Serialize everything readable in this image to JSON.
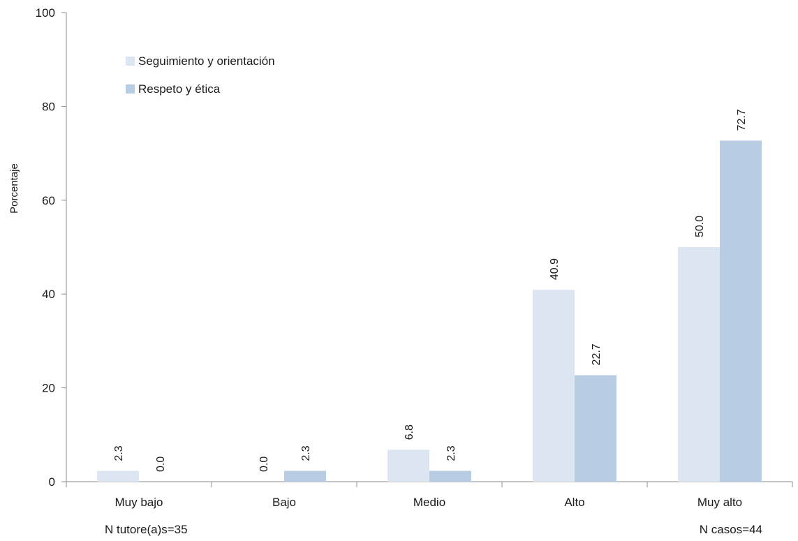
{
  "chart_data": {
    "type": "bar",
    "title": "",
    "xlabel": "",
    "ylabel": "Porcentaje",
    "ylim": [
      0,
      100
    ],
    "yticks": [
      0,
      20,
      40,
      60,
      80,
      100
    ],
    "grid": false,
    "legend_position": "top-left",
    "categories": [
      "Muy bajo",
      "Bajo",
      "Medio",
      "Alto",
      "Muy alto"
    ],
    "series": [
      {
        "name": "Seguimiento y orientación",
        "color": "#dce6f2",
        "values": [
          2.3,
          0.0,
          6.8,
          40.9,
          50.0
        ],
        "labels": [
          "2.3",
          "0.0",
          "6.8",
          "40.9",
          "50.0"
        ]
      },
      {
        "name": "Respeto y ética",
        "color": "#b8cce4",
        "values": [
          0.0,
          2.3,
          2.3,
          22.7,
          72.7
        ],
        "labels": [
          "0.0",
          "2.3",
          "2.3",
          "22.7",
          "72.7"
        ]
      }
    ],
    "notes": {
      "left": "N tutore(a)s=35",
      "right": "N casos=44"
    }
  }
}
